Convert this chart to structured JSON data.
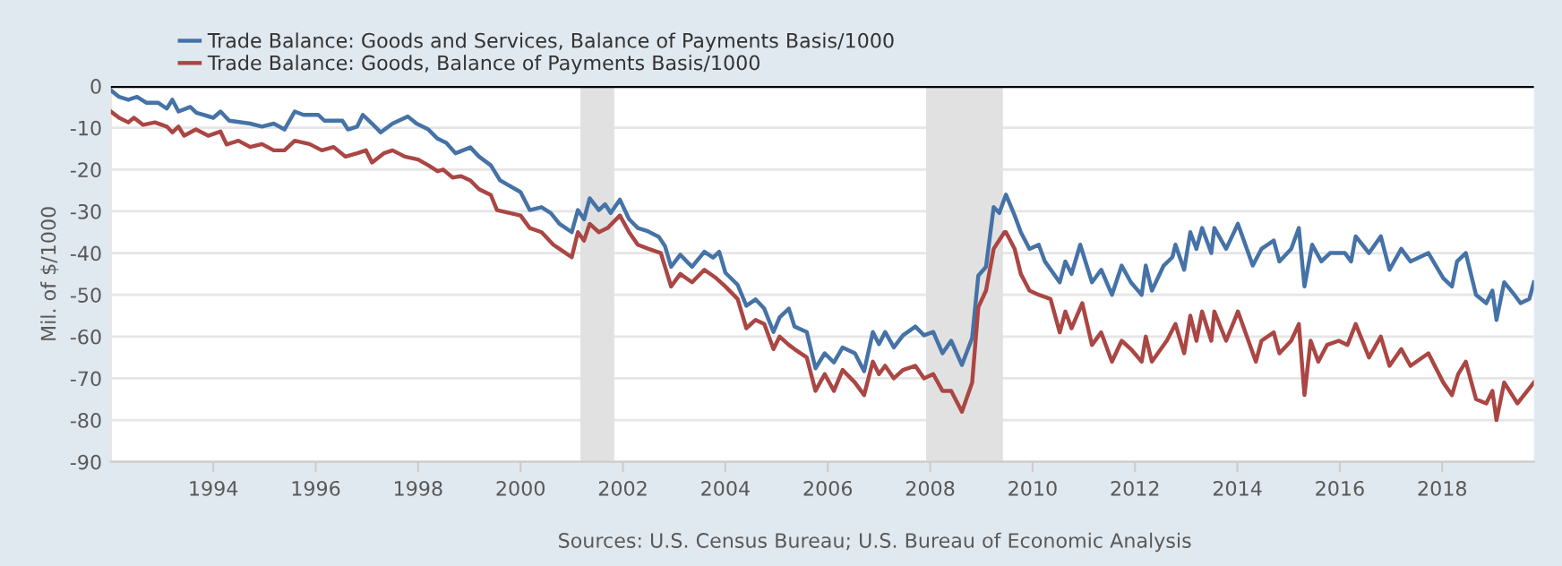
{
  "chart_data": {
    "type": "line",
    "ylabel": "Mil. of $/1000",
    "annotations": [
      "Sources: U.S. Census Bureau; U.S. Bureau of Economic Analysis"
    ],
    "xlim": [
      1992.0,
      2019.79
    ],
    "xticks": [
      1994,
      1996,
      1998,
      2000,
      2002,
      2004,
      2006,
      2008,
      2010,
      2012,
      2014,
      2016,
      2018
    ],
    "ylim": [
      -90,
      0
    ],
    "yticks": [
      0,
      -10,
      -20,
      -30,
      -40,
      -50,
      -60,
      -70,
      -80,
      -90
    ],
    "grid": "y",
    "legend": "top left",
    "line_style": "solid",
    "marker": "none",
    "ref_lines": [
      {
        "axis": "y",
        "value": 0,
        "color": "#000000"
      }
    ],
    "bands": [
      {
        "axis": "x",
        "from": 2001.17,
        "to": 2001.83,
        "color": "#e1e1e1"
      },
      {
        "axis": "x",
        "from": 2007.92,
        "to": 2009.42,
        "color": "#e1e1e1"
      }
    ],
    "series": [
      {
        "name": "Trade Balance: Goods and Services, Balance of Payments Basis/1000",
        "color": "#4572a7",
        "x": [
          1992.0,
          1992.16,
          1992.34,
          1992.51,
          1992.69,
          1992.92,
          1993.09,
          1993.2,
          1993.32,
          1993.55,
          1993.67,
          1994.0,
          1994.14,
          1994.31,
          1994.72,
          1994.95,
          1995.18,
          1995.39,
          1995.59,
          1995.76,
          1996.05,
          1996.17,
          1996.52,
          1996.63,
          1996.81,
          1996.92,
          1997.1,
          1997.27,
          1997.5,
          1997.8,
          1997.97,
          1998.2,
          1998.38,
          1998.55,
          1998.73,
          1999.02,
          1999.19,
          1999.42,
          1999.6,
          2000.0,
          2000.18,
          2000.41,
          2000.59,
          2000.76,
          2001.0,
          2001.12,
          2001.24,
          2001.35,
          2001.53,
          2001.65,
          2001.76,
          2001.94,
          2002.12,
          2002.29,
          2002.47,
          2002.7,
          2002.82,
          2002.94,
          2003.12,
          2003.35,
          2003.59,
          2003.76,
          2003.88,
          2004.0,
          2004.24,
          2004.41,
          2004.59,
          2004.76,
          2004.94,
          2005.06,
          2005.24,
          2005.35,
          2005.59,
          2005.76,
          2005.94,
          2006.12,
          2006.29,
          2006.53,
          2006.71,
          2006.88,
          2007.0,
          2007.12,
          2007.29,
          2007.47,
          2007.71,
          2007.88,
          2008.06,
          2008.24,
          2008.41,
          2008.62,
          2008.82,
          2008.94,
          2009.09,
          2009.24,
          2009.35,
          2009.48,
          2009.65,
          2009.77,
          2009.94,
          2010.12,
          2010.24,
          2010.53,
          2010.64,
          2010.76,
          2010.93,
          2011.16,
          2011.34,
          2011.55,
          2011.74,
          2011.92,
          2012.13,
          2012.21,
          2012.33,
          2012.56,
          2012.73,
          2012.79,
          2012.96,
          2013.08,
          2013.2,
          2013.31,
          2013.49,
          2013.55,
          2013.78,
          2014.01,
          2014.3,
          2014.47,
          2014.71,
          2014.82,
          2015.05,
          2015.2,
          2015.31,
          2015.46,
          2015.64,
          2015.81,
          2016.1,
          2016.22,
          2016.31,
          2016.57,
          2016.8,
          2016.97,
          2017.2,
          2017.38,
          2017.73,
          2018.02,
          2018.19,
          2018.29,
          2018.46,
          2018.66,
          2018.86,
          2018.98,
          2019.06,
          2019.21,
          2019.41,
          2019.53,
          2019.7,
          2019.79
        ],
        "values": [
          -1,
          -2.6,
          -3.3,
          -2.6,
          -4,
          -4,
          -5.4,
          -3.3,
          -6.1,
          -5,
          -6.4,
          -7.6,
          -6.1,
          -8.3,
          -9,
          -9.7,
          -9,
          -10.4,
          -6.1,
          -6.9,
          -6.9,
          -8.3,
          -8.3,
          -10.4,
          -9.7,
          -6.9,
          -9,
          -11.1,
          -9,
          -7.3,
          -9,
          -10.4,
          -12.6,
          -13.6,
          -16.1,
          -14.7,
          -16.9,
          -19,
          -22.6,
          -25.4,
          -29.7,
          -29,
          -30.4,
          -33,
          -35,
          -29.7,
          -31.9,
          -26.9,
          -29.7,
          -28.3,
          -30.4,
          -27.2,
          -31.9,
          -34,
          -34.7,
          -36.1,
          -38.3,
          -43.3,
          -40.4,
          -43.3,
          -39.7,
          -41.1,
          -39.7,
          -44.7,
          -47.6,
          -52.6,
          -51.1,
          -53.3,
          -58.9,
          -55.4,
          -53.3,
          -57.6,
          -58.9,
          -67.6,
          -64,
          -66.2,
          -62.6,
          -64,
          -68.3,
          -58.9,
          -61.8,
          -58.9,
          -62.6,
          -59.7,
          -57.6,
          -59.7,
          -58.9,
          -64,
          -61,
          -66.8,
          -60.3,
          -45.4,
          -43.3,
          -29,
          -30.4,
          -26,
          -31,
          -35,
          -39,
          -38,
          -42,
          -47,
          -42,
          -45,
          -38,
          -47,
          -44,
          -50,
          -43,
          -47,
          -50,
          -43,
          -49,
          -43,
          -41,
          -38,
          -44,
          -35,
          -39,
          -34,
          -40,
          -34,
          -39,
          -33,
          -43,
          -39,
          -37,
          -42,
          -39,
          -34,
          -48,
          -38,
          -42,
          -40,
          -40,
          -42,
          -36,
          -40,
          -36,
          -44,
          -39,
          -42,
          -40,
          -46,
          -48,
          -42,
          -40,
          -50,
          -52,
          -49,
          -56,
          -47,
          -50,
          -52,
          -51,
          -47
        ]
      },
      {
        "name": "Trade Balance: Goods, Balance of Payments Basis/1000",
        "color": "#aa4643",
        "x": [
          1992.0,
          1992.16,
          1992.34,
          1992.45,
          1992.63,
          1992.86,
          1993.09,
          1993.2,
          1993.32,
          1993.43,
          1993.66,
          1993.9,
          1994.14,
          1994.26,
          1994.49,
          1994.72,
          1994.95,
          1995.18,
          1995.39,
          1995.59,
          1995.88,
          1996.12,
          1996.35,
          1996.58,
          1996.81,
          1996.98,
          1997.1,
          1997.33,
          1997.5,
          1997.74,
          1998.0,
          1998.2,
          1998.38,
          1998.49,
          1998.67,
          1998.84,
          1999.02,
          1999.19,
          1999.42,
          1999.54,
          2000.0,
          2000.18,
          2000.41,
          2000.64,
          2000.76,
          2001.0,
          2001.12,
          2001.24,
          2001.35,
          2001.53,
          2001.7,
          2001.94,
          2002.12,
          2002.29,
          2002.5,
          2002.74,
          2002.94,
          2003.12,
          2003.35,
          2003.59,
          2003.82,
          2004.0,
          2004.24,
          2004.41,
          2004.59,
          2004.76,
          2004.94,
          2005.06,
          2005.24,
          2005.35,
          2005.59,
          2005.76,
          2005.94,
          2006.12,
          2006.29,
          2006.53,
          2006.71,
          2006.88,
          2007.0,
          2007.12,
          2007.29,
          2007.47,
          2007.71,
          2007.88,
          2008.06,
          2008.24,
          2008.41,
          2008.62,
          2008.82,
          2008.94,
          2009.09,
          2009.24,
          2009.45,
          2009.48,
          2009.65,
          2009.77,
          2009.94,
          2010.12,
          2010.35,
          2010.53,
          2010.64,
          2010.76,
          2010.97,
          2011.16,
          2011.34,
          2011.55,
          2011.74,
          2011.92,
          2012.13,
          2012.21,
          2012.33,
          2012.62,
          2012.79,
          2012.96,
          2013.08,
          2013.2,
          2013.31,
          2013.49,
          2013.55,
          2013.78,
          2014.01,
          2014.36,
          2014.47,
          2014.71,
          2014.82,
          2015.05,
          2015.2,
          2015.31,
          2015.43,
          2015.58,
          2015.75,
          2015.98,
          2016.15,
          2016.31,
          2016.57,
          2016.8,
          2016.97,
          2017.2,
          2017.38,
          2017.73,
          2018.02,
          2018.19,
          2018.31,
          2018.46,
          2018.66,
          2018.86,
          2018.98,
          2019.06,
          2019.21,
          2019.47,
          2019.79
        ],
        "values": [
          -6.1,
          -7.6,
          -8.7,
          -7.6,
          -9.3,
          -8.7,
          -9.7,
          -11.1,
          -9.7,
          -11.9,
          -10.4,
          -11.9,
          -10.9,
          -14,
          -13.1,
          -14.6,
          -13.9,
          -15.4,
          -15.4,
          -13.1,
          -13.9,
          -15.4,
          -14.6,
          -16.9,
          -16.1,
          -15.4,
          -18.3,
          -16.1,
          -15.4,
          -16.9,
          -17.6,
          -19,
          -20.4,
          -20,
          -21.9,
          -21.6,
          -22.6,
          -24.7,
          -26.1,
          -29.7,
          -31,
          -34,
          -35,
          -38,
          -39,
          -41,
          -35,
          -37,
          -33,
          -35,
          -34,
          -31,
          -35,
          -38,
          -39,
          -40,
          -48,
          -45,
          -47,
          -44,
          -46,
          -48,
          -51,
          -58,
          -56,
          -57,
          -63,
          -60,
          -62,
          -63,
          -65,
          -73,
          -69,
          -73,
          -68,
          -71,
          -74,
          -66,
          -69,
          -67,
          -70,
          -68,
          -67,
          -70,
          -69,
          -73,
          -73,
          -78,
          -71,
          -53,
          -49,
          -39,
          -35,
          -35,
          -39,
          -45,
          -49,
          -50,
          -51,
          -59,
          -54,
          -58,
          -52,
          -62,
          -59,
          -66,
          -61,
          -63,
          -66,
          -60,
          -66,
          -61,
          -57,
          -64,
          -55,
          -61,
          -54,
          -61,
          -54,
          -61,
          -54,
          -66,
          -61,
          -59,
          -64,
          -61,
          -57,
          -74,
          -61,
          -66,
          -62,
          -61,
          -62,
          -57,
          -65,
          -60,
          -67,
          -63,
          -67,
          -64,
          -71,
          -74,
          -69,
          -66,
          -75,
          -76,
          -73,
          -80,
          -71,
          -76,
          -71
        ]
      }
    ]
  }
}
